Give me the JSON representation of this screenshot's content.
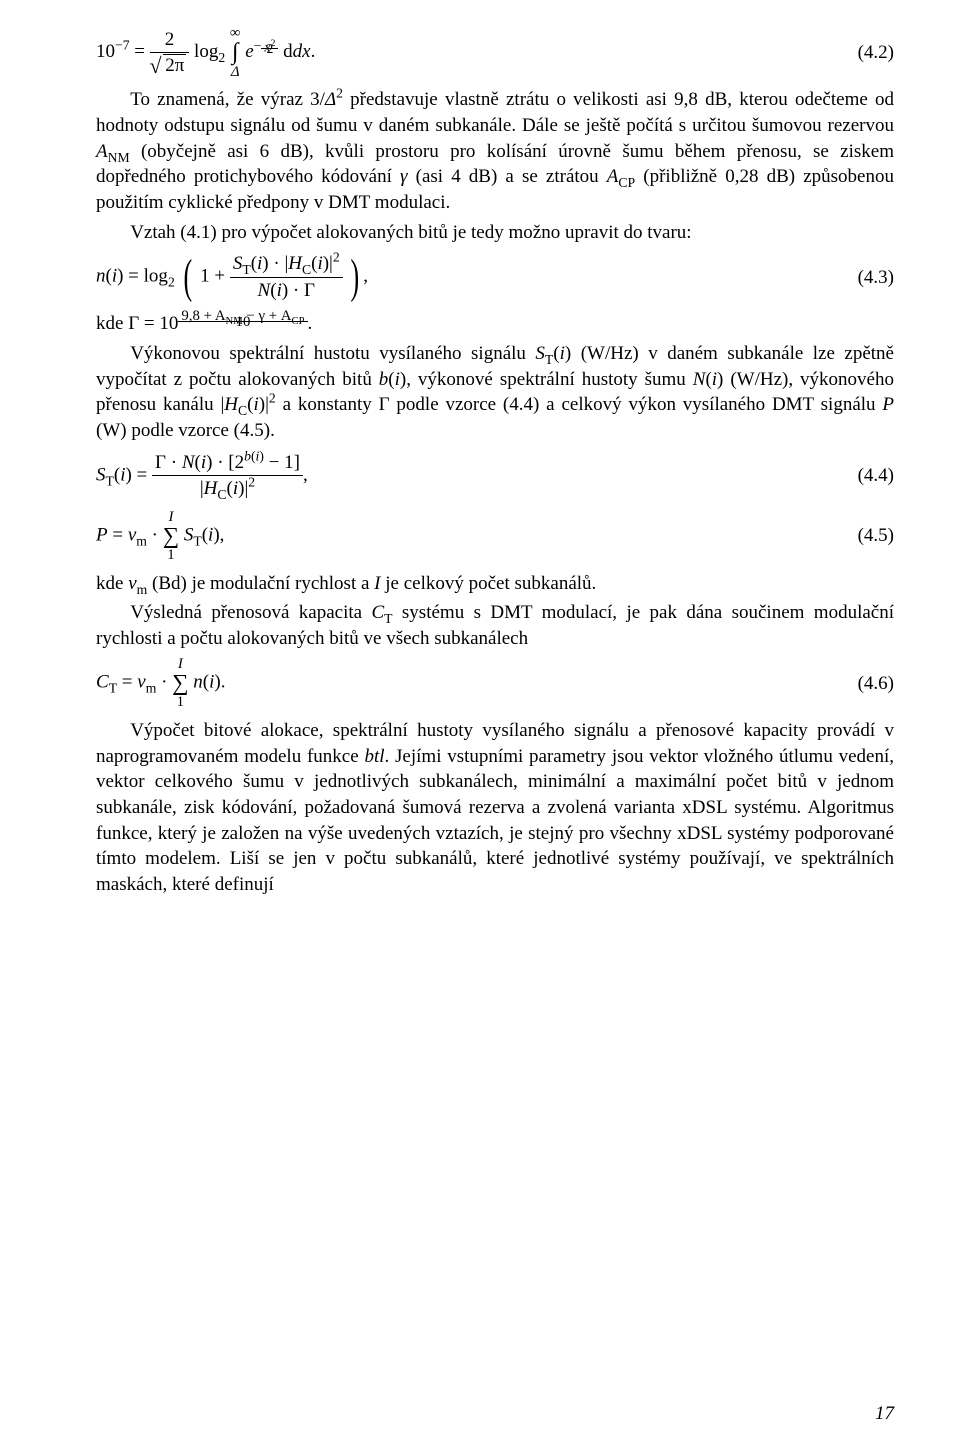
{
  "eq42": {
    "lhs": "10",
    "lhs_exp": "−7",
    "front_num": "2",
    "front_den_rad": "2π",
    "log_base": "2",
    "int_low": "Δ",
    "int_up": "∞",
    "e_base": "e",
    "exp_num": "x",
    "exp_num_sup": "2",
    "exp_den": "2",
    "dx": "dx",
    "dot": ".",
    "num": "(4.2)"
  },
  "para1": {
    "text_a": "To znamená, že výraz 3/",
    "delta": "Δ",
    "delta_exp": "2",
    "text_b": " představuje vlastně ztrátu o velikosti asi 9,8 dB, kterou odečteme od hodnoty odstupu signálu od šumu v daném subkanále. Dále se ještě počítá s určitou šumovou rezervou ",
    "anm": "A",
    "anm_sub": "NM",
    "text_c": " (obyčejně asi 6 dB), kvůli prostoru pro kolísání úrovně šumu během přenosu, se ziskem dopředného protichybového kódování ",
    "gamma": "γ",
    "text_d": " (asi 4 dB) a se ztrátou ",
    "acp": "A",
    "acp_sub": "CP",
    "text_e": " (přibližně 0,28 dB) způsobenou použitím cyklické předpony v DMT modulaci."
  },
  "para2": "Vztah (4.1) pro výpočet alokovaných bitů je tedy možno upravit do tvaru:",
  "eq43": {
    "lhs_n": "n",
    "lhs_arg": "i",
    "log_base": "2",
    "one": "1",
    "st": "S",
    "st_sub": "T",
    "hc": "H",
    "hc_sub": "C",
    "arg": "i",
    "abs_exp": "2",
    "nfun": "N",
    "gamma": "Γ",
    "comma": ",",
    "num": "(4.3)"
  },
  "kde_gamma": {
    "kde": "kde ",
    "gamma": "Γ",
    "eq": " = 10",
    "exp_num": "9,8 + A",
    "exp_nm_sub": "NM",
    "exp_mid": " − γ + A",
    "exp_cp_sub": "CP",
    "exp_den": "10",
    "dot": "."
  },
  "para3": {
    "a": "Výkonovou spektrální hustotu vysílaného signálu ",
    "st": "S",
    "st_sub": "T",
    "i": "i",
    "b": " (W/Hz) v daném subkanále lze zpětně vypočítat z počtu alokovaných bitů ",
    "bfun": "b",
    "c": ", výkonové spektrální hustoty šumu ",
    "nfun": "N",
    "d": " (W/Hz), výkonového přenosu kanálu |",
    "hc": "H",
    "hc_sub": "C",
    "e": "|",
    "two": "2",
    "f": " a konstanty Γ podle vzorce (4.4) a celkový výkon vysílaného DMT signálu  ",
    "p": "P",
    "g": " (W) podle vzorce (4.5)."
  },
  "eq44": {
    "st": "S",
    "st_sub": "T",
    "i": "i",
    "gamma": "Γ",
    "nfun": "N",
    "two": "2",
    "bfun": "b",
    "minus1": " − 1",
    "hc": "H",
    "hc_sub": "C",
    "abs_exp": "2",
    "comma": ",",
    "num": "(4.4)"
  },
  "eq45": {
    "p": "P",
    "vm": "v",
    "vm_sub": "m",
    "sum_low": "1",
    "sum_up": "I",
    "st": "S",
    "st_sub": "T",
    "i": "i",
    "comma": ",",
    "num": "(4.5)"
  },
  "para4": {
    "a": "kde ",
    "vm": "v",
    "vm_sub": "m",
    "b": " (Bd) je modulační rychlost a ",
    "I": "I",
    "c": " je celkový počet subkanálů."
  },
  "para5": {
    "a": "Výsledná přenosová kapacita ",
    "ct": "C",
    "ct_sub": "T",
    "b": " systému s DMT modulací, je pak dána součinem modulační rychlosti a počtu alokovaných bitů ve všech subkanálech"
  },
  "eq46": {
    "ct": "C",
    "ct_sub": "T",
    "vm": "v",
    "vm_sub": "m",
    "sum_low": "1",
    "sum_up": "I",
    "n": "n",
    "i": "i",
    "dot": ".",
    "num": "(4.6)"
  },
  "para6": {
    "a": "Výpočet bitové alokace, spektrální hustoty vysílaného signálu a přenosové kapacity provádí v naprogramovaném modelu funkce ",
    "btl": "btl",
    "b": ". Jejími vstupními parametry jsou vektor vložného útlumu vedení, vektor celkového šumu v jednotlivých subkanálech, minimální a maximální počet bitů v jednom subkanále, zisk kódování, požadovaná šumová rezerva a zvolená varianta xDSL systému. Algoritmus funkce, který je založen na výše uvedených vztazích, je stejný pro všechny xDSL systémy podporované tímto modelem. Liší se jen v počtu subkanálů, které jednotlivé systémy používají, ve spektrálních maskách, které definují"
  },
  "page_number": "17"
}
